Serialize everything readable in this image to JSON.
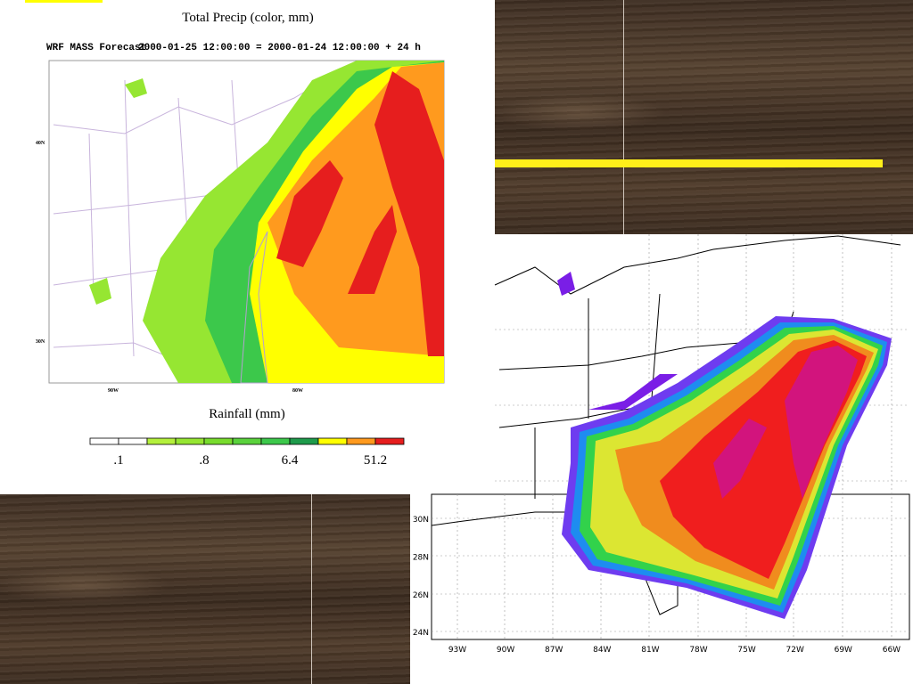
{
  "left_map": {
    "title": "Total Precip (color, mm)",
    "run_label": "WRF MASS Forecast",
    "valid_time": "2000-01-25 12:00:00 = 2000-01-24 12:00:00 + 24 h",
    "lat_labels": [
      "40N",
      "30N"
    ],
    "lon_labels": [
      "90W",
      "80W"
    ],
    "legend": {
      "title": "Rainfall (mm)",
      "labels": [
        ".1",
        ".8",
        "6.4",
        "51.2"
      ],
      "colors": [
        "#ffffff",
        "#ffffff",
        "#b4f03c",
        "#96e632",
        "#78dc2d",
        "#5ad23c",
        "#3cc84b",
        "#1e9b4b",
        "#ffff00",
        "#ff9a1e",
        "#e61e1e"
      ]
    }
  },
  "right_map": {
    "lat_labels": [
      "30N",
      "28N",
      "26N",
      "24N"
    ],
    "lon_labels": [
      "93W",
      "90W",
      "87W",
      "84W",
      "81W",
      "78W",
      "75W",
      "72W",
      "69W",
      "66W"
    ]
  }
}
